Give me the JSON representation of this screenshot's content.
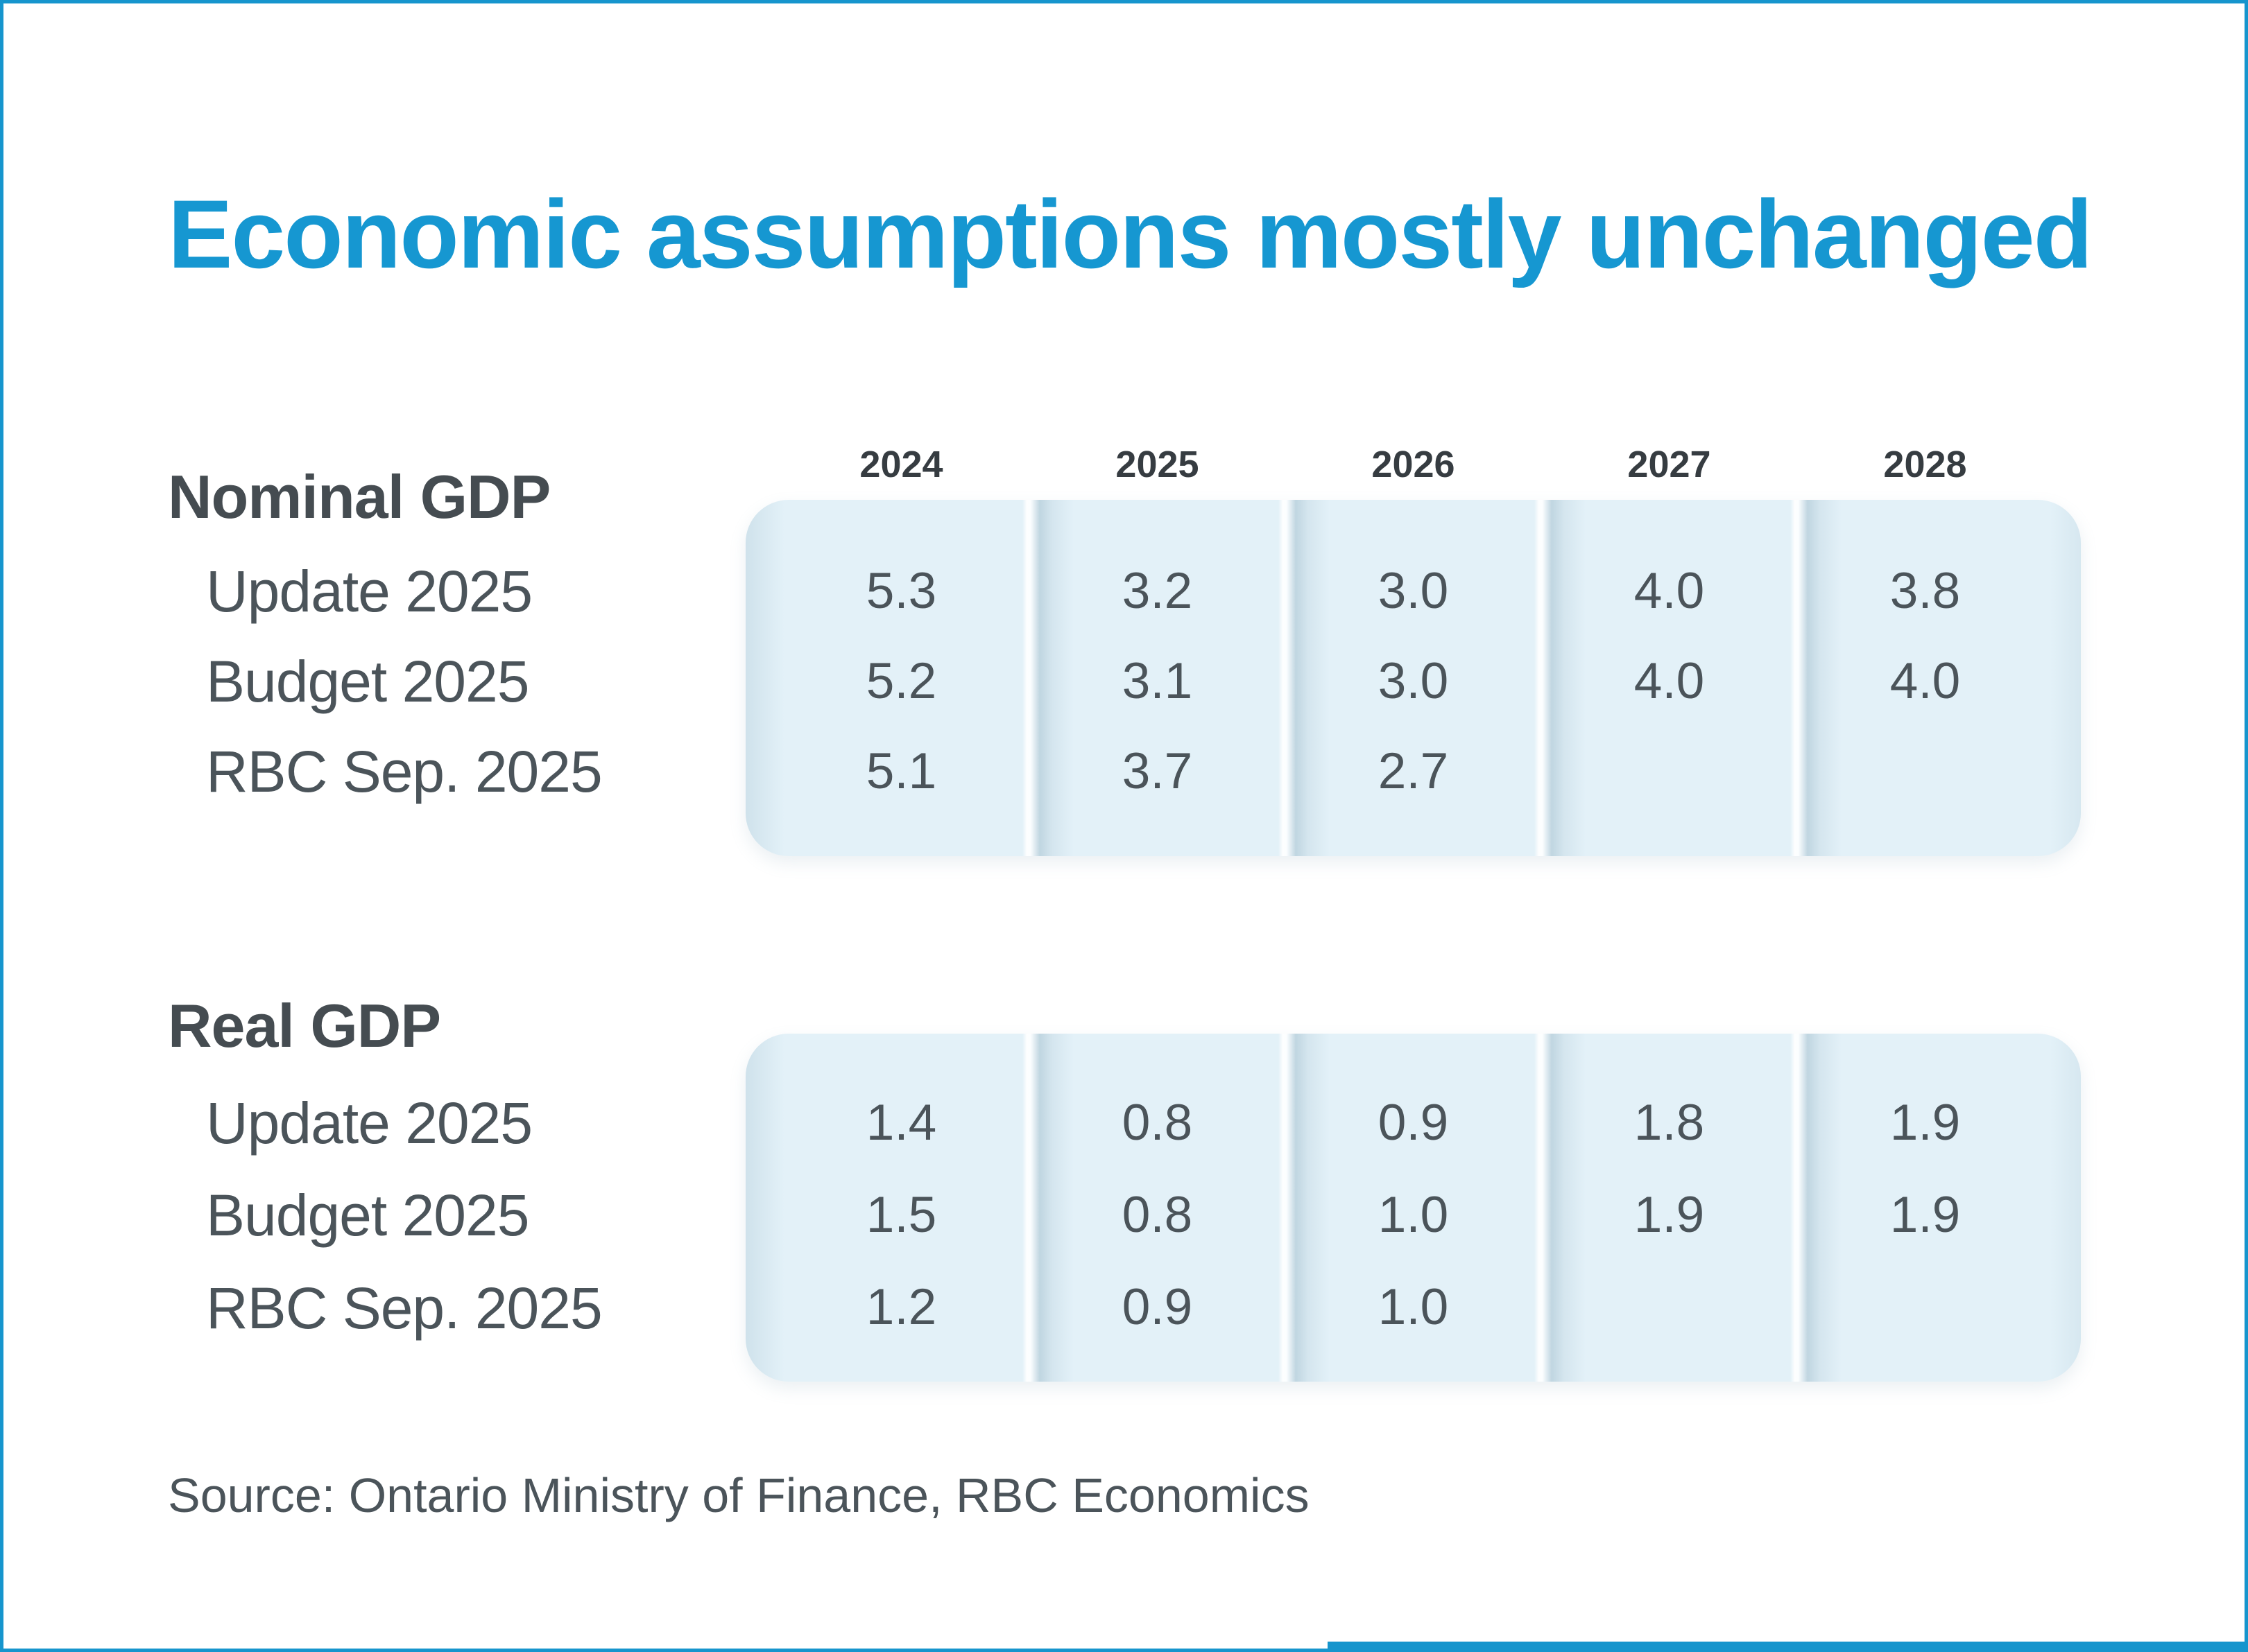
{
  "page": {
    "title": "Economic assumptions mostly unchanged",
    "source": "Source: Ontario Ministry of Finance, RBC Economics"
  },
  "years": [
    "2024",
    "2025",
    "2026",
    "2027",
    "2028"
  ],
  "sections": [
    {
      "label": "Nominal GDP",
      "rows": [
        {
          "label": "Update 2025",
          "values": [
            "5.3",
            "3.2",
            "3.0",
            "4.0",
            "3.8"
          ]
        },
        {
          "label": "Budget 2025",
          "values": [
            "5.2",
            "3.1",
            "3.0",
            "4.0",
            "4.0"
          ]
        },
        {
          "label": "RBC Sep. 2025",
          "values": [
            "5.1",
            "3.7",
            "2.7",
            "",
            ""
          ]
        }
      ]
    },
    {
      "label": "Real GDP",
      "rows": [
        {
          "label": "Update 2025",
          "values": [
            "1.4",
            "0.8",
            "0.9",
            "1.8",
            "1.9"
          ]
        },
        {
          "label": "Budget 2025",
          "values": [
            "1.5",
            "0.8",
            "1.0",
            "1.9",
            "1.9"
          ]
        },
        {
          "label": "RBC Sep. 2025",
          "values": [
            "1.2",
            "0.9",
            "1.0",
            "",
            ""
          ]
        }
      ]
    }
  ],
  "colors": {
    "accent_blue": "#1695cd",
    "title_blue": "#1697d1",
    "panel_blue": "#e3f1f8",
    "text_dark": "#4b545a",
    "header_dark": "#363c41"
  },
  "chart_data": {
    "type": "table",
    "title": "Economic assumptions mostly unchanged",
    "columns": [
      "2024",
      "2025",
      "2026",
      "2027",
      "2028"
    ],
    "tables": [
      {
        "name": "Nominal GDP",
        "series": [
          {
            "name": "Update 2025",
            "values": [
              5.3,
              3.2,
              3.0,
              4.0,
              3.8
            ]
          },
          {
            "name": "Budget 2025",
            "values": [
              5.2,
              3.1,
              3.0,
              4.0,
              4.0
            ]
          },
          {
            "name": "RBC Sep. 2025",
            "values": [
              5.1,
              3.7,
              2.7,
              null,
              null
            ]
          }
        ]
      },
      {
        "name": "Real GDP",
        "series": [
          {
            "name": "Update 2025",
            "values": [
              1.4,
              0.8,
              0.9,
              1.8,
              1.9
            ]
          },
          {
            "name": "Budget 2025",
            "values": [
              1.5,
              0.8,
              1.0,
              1.9,
              1.9
            ]
          },
          {
            "name": "RBC Sep. 2025",
            "values": [
              1.2,
              0.9,
              1.0,
              null,
              null
            ]
          }
        ]
      }
    ],
    "source": "Source: Ontario Ministry of Finance, RBC Economics",
    "layout_hints": {
      "grid": false,
      "legend": "none",
      "value_unit": "% growth"
    }
  }
}
